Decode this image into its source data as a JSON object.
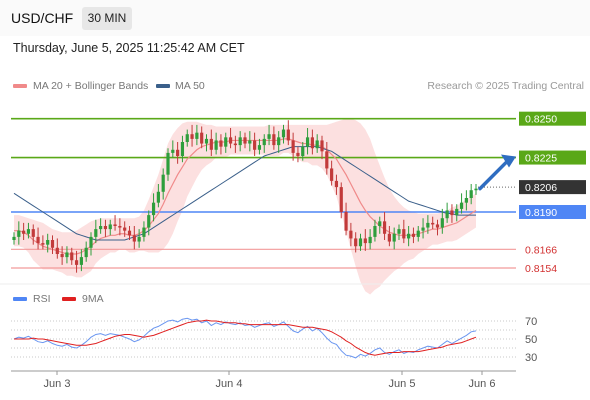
{
  "header": {
    "symbol": "USD/CHF",
    "timeframe": "30 MIN",
    "datetime": "Thursday, June 5, 2025 11:25:42 AM CET"
  },
  "legend": {
    "ma20_label": "MA 20 + Bollinger Bands",
    "ma50_label": "MA 50",
    "credit": "Research © 2025 Trading Central",
    "rsi_label": "RSI",
    "ma9_label": "9MA"
  },
  "colors": {
    "resistance": "#5aa818",
    "support": "#4f86f5",
    "minor": "#f29a9a",
    "bullish": "#2e9e3c",
    "bearish": "#c23a3a",
    "ma20": "#f08a8a",
    "ma50": "#3a5f8a",
    "arrow": "#2f6dc1",
    "current": "#333333"
  },
  "chart_data": [
    {
      "type": "candlestick",
      "title": "USD/CHF",
      "x_labels": [
        "Jun 3",
        "Jun 4",
        "Jun 5",
        "Jun 6"
      ],
      "ylim": [
        0.8145,
        0.8262
      ],
      "current_price": 0.8206,
      "levels": [
        {
          "value": 0.825,
          "label": "0.8250",
          "kind": "resistance"
        },
        {
          "value": 0.8225,
          "label": "0.8225",
          "kind": "resistance"
        },
        {
          "value": 0.8206,
          "label": "0.8206",
          "kind": "current"
        },
        {
          "value": 0.819,
          "label": "0.8190",
          "kind": "pivot"
        },
        {
          "value": 0.8166,
          "label": "0.8166",
          "kind": "support"
        },
        {
          "value": 0.8154,
          "label": "0.8154",
          "kind": "support"
        }
      ],
      "close": [
        0.8174,
        0.8178,
        0.8176,
        0.8179,
        0.8174,
        0.817,
        0.8169,
        0.8172,
        0.8167,
        0.8163,
        0.8161,
        0.8164,
        0.8159,
        0.8156,
        0.8161,
        0.8167,
        0.8174,
        0.8179,
        0.8181,
        0.8179,
        0.8182,
        0.8181,
        0.818,
        0.8178,
        0.8175,
        0.8171,
        0.8174,
        0.818,
        0.8188,
        0.8196,
        0.8203,
        0.8214,
        0.8228,
        0.823,
        0.8226,
        0.8235,
        0.824,
        0.8237,
        0.8241,
        0.8234,
        0.8237,
        0.823,
        0.8236,
        0.8232,
        0.8238,
        0.8234,
        0.8233,
        0.8238,
        0.8234,
        0.8236,
        0.823,
        0.8233,
        0.8237,
        0.824,
        0.8233,
        0.8238,
        0.8243,
        0.8236,
        0.8228,
        0.8226,
        0.8232,
        0.8238,
        0.8231,
        0.8236,
        0.8229,
        0.8218,
        0.821,
        0.8206,
        0.819,
        0.8178,
        0.8173,
        0.8168,
        0.8173,
        0.817,
        0.8174,
        0.8181,
        0.8184,
        0.8176,
        0.8171,
        0.8176,
        0.8179,
        0.8173,
        0.8176,
        0.8174,
        0.8178,
        0.818,
        0.8183,
        0.8182,
        0.818,
        0.8186,
        0.8191,
        0.8188,
        0.8192,
        0.8196,
        0.8199,
        0.8204,
        0.8205
      ],
      "ma20": [
        0.8178,
        0.8178,
        0.8177,
        0.8175,
        0.8172,
        0.817,
        0.8168,
        0.8167,
        0.8166,
        0.8165,
        0.8164,
        0.8163,
        0.8163,
        0.8163,
        0.8164,
        0.8166,
        0.8168,
        0.8171,
        0.8173,
        0.8174,
        0.8175,
        0.8175,
        0.8176,
        0.8176,
        0.8175,
        0.8175,
        0.8176,
        0.8178,
        0.8181,
        0.8185,
        0.8189,
        0.8195,
        0.8202,
        0.8208,
        0.8214,
        0.8219,
        0.8224,
        0.8227,
        0.823,
        0.8232,
        0.8233,
        0.8234,
        0.8235,
        0.8235,
        0.8235,
        0.8236,
        0.8236,
        0.8236,
        0.8236,
        0.8236,
        0.8236,
        0.8236,
        0.8236,
        0.8236,
        0.8236,
        0.8236,
        0.8237,
        0.8237,
        0.8236,
        0.8235,
        0.8234,
        0.8234,
        0.8233,
        0.8233,
        0.8232,
        0.823,
        0.8227,
        0.8224,
        0.8219,
        0.8214,
        0.8208,
        0.8202,
        0.8196,
        0.8191,
        0.8187,
        0.8184,
        0.8181,
        0.8179,
        0.8177,
        0.8176,
        0.8175,
        0.8175,
        0.8175,
        0.8175,
        0.8176,
        0.8177,
        0.8178,
        0.8179,
        0.8179,
        0.818,
        0.8181,
        0.8182,
        0.8183,
        0.8185,
        0.8187,
        0.8189,
        0.8191
      ],
      "bb_upper": [
        0.8188,
        0.8188,
        0.8187,
        0.8186,
        0.8185,
        0.8184,
        0.8183,
        0.8181,
        0.8179,
        0.8178,
        0.8177,
        0.8177,
        0.8177,
        0.8178,
        0.818,
        0.8182,
        0.8184,
        0.8185,
        0.8186,
        0.8186,
        0.8186,
        0.8186,
        0.8186,
        0.8186,
        0.8186,
        0.8186,
        0.8187,
        0.8191,
        0.8198,
        0.8206,
        0.8214,
        0.8224,
        0.8234,
        0.824,
        0.8244,
        0.8247,
        0.8248,
        0.8248,
        0.8248,
        0.8247,
        0.8246,
        0.8246,
        0.8245,
        0.8245,
        0.8245,
        0.8245,
        0.8245,
        0.8245,
        0.8245,
        0.8245,
        0.8245,
        0.8245,
        0.8245,
        0.8246,
        0.8246,
        0.8246,
        0.8246,
        0.8246,
        0.8246,
        0.8246,
        0.8246,
        0.8246,
        0.8246,
        0.8246,
        0.8246,
        0.8246,
        0.8247,
        0.8248,
        0.8249,
        0.825,
        0.825,
        0.8249,
        0.8247,
        0.8243,
        0.8237,
        0.8228,
        0.822,
        0.8212,
        0.8205,
        0.82,
        0.8196,
        0.8193,
        0.8191,
        0.819,
        0.8189,
        0.8189,
        0.8189,
        0.8189,
        0.8189,
        0.819,
        0.8191,
        0.8193,
        0.8194,
        0.8196,
        0.8198,
        0.82,
        0.8202
      ],
      "bb_lower": [
        0.8168,
        0.8168,
        0.8167,
        0.8164,
        0.8159,
        0.8156,
        0.8153,
        0.8153,
        0.8153,
        0.8152,
        0.8151,
        0.8149,
        0.8149,
        0.8148,
        0.8148,
        0.815,
        0.8152,
        0.8157,
        0.816,
        0.8162,
        0.8164,
        0.8164,
        0.8166,
        0.8166,
        0.8164,
        0.8164,
        0.8165,
        0.8165,
        0.8164,
        0.8164,
        0.8164,
        0.8166,
        0.817,
        0.8176,
        0.8184,
        0.8191,
        0.82,
        0.8206,
        0.8212,
        0.8217,
        0.822,
        0.8222,
        0.8225,
        0.8225,
        0.8225,
        0.8227,
        0.8227,
        0.8227,
        0.8227,
        0.8227,
        0.8227,
        0.8227,
        0.8227,
        0.8226,
        0.8226,
        0.8226,
        0.8228,
        0.8228,
        0.8226,
        0.8224,
        0.8222,
        0.8222,
        0.822,
        0.822,
        0.8218,
        0.8214,
        0.8207,
        0.82,
        0.8189,
        0.8178,
        0.8166,
        0.8155,
        0.8145,
        0.8139,
        0.8137,
        0.814,
        0.8142,
        0.8146,
        0.8149,
        0.8152,
        0.8154,
        0.8157,
        0.8159,
        0.816,
        0.8163,
        0.8165,
        0.8167,
        0.8169,
        0.8169,
        0.817,
        0.8171,
        0.8171,
        0.8172,
        0.8174,
        0.8176,
        0.8178,
        0.818
      ],
      "ma50": [
        0.8202,
        0.82,
        0.8198,
        0.8196,
        0.8194,
        0.8192,
        0.819,
        0.8188,
        0.8186,
        0.8184,
        0.8182,
        0.818,
        0.8178,
        0.8176,
        0.8175,
        0.8174,
        0.8173,
        0.8172,
        0.8172,
        0.8172,
        0.8172,
        0.8172,
        0.8172,
        0.8172,
        0.8173,
        0.8174,
        0.8175,
        0.8176,
        0.8178,
        0.818,
        0.8182,
        0.8184,
        0.8186,
        0.8188,
        0.819,
        0.8192,
        0.8194,
        0.8196,
        0.8198,
        0.82,
        0.8202,
        0.8204,
        0.8206,
        0.8208,
        0.821,
        0.8212,
        0.8214,
        0.8216,
        0.8218,
        0.822,
        0.8222,
        0.8224,
        0.8226,
        0.8227,
        0.8228,
        0.8229,
        0.823,
        0.8231,
        0.8232,
        0.8232,
        0.8232,
        0.8232,
        0.8232,
        0.8232,
        0.8231,
        0.823,
        0.8229,
        0.8227,
        0.8225,
        0.8223,
        0.8221,
        0.8219,
        0.8217,
        0.8215,
        0.8213,
        0.8211,
        0.8209,
        0.8207,
        0.8205,
        0.8203,
        0.8201,
        0.8199,
        0.8197,
        0.8196,
        0.8195,
        0.8194,
        0.8193,
        0.8192,
        0.8191,
        0.819,
        0.8189,
        0.8189,
        0.8188,
        0.8188,
        0.8188,
        0.8188,
        0.8188
      ]
    },
    {
      "type": "line",
      "title": "RSI",
      "ylim": [
        20,
        80
      ],
      "y_ticks": [
        30,
        50,
        70
      ],
      "series": [
        {
          "name": "RSI",
          "values": [
            50,
            52,
            51,
            53,
            50,
            47,
            46,
            48,
            45,
            43,
            42,
            44,
            41,
            40,
            43,
            47,
            52,
            55,
            56,
            54,
            56,
            55,
            54,
            52,
            50,
            47,
            49,
            53,
            58,
            62,
            64,
            67,
            70,
            71,
            69,
            72,
            73,
            71,
            72,
            68,
            70,
            65,
            68,
            66,
            69,
            67,
            66,
            68,
            65,
            66,
            63,
            65,
            67,
            68,
            64,
            66,
            69,
            64,
            59,
            57,
            61,
            64,
            59,
            62,
            57,
            51,
            46,
            44,
            37,
            32,
            31,
            29,
            33,
            31,
            34,
            38,
            40,
            35,
            33,
            36,
            38,
            34,
            36,
            35,
            38,
            40,
            42,
            41,
            40,
            44,
            48,
            45,
            48,
            51,
            54,
            58,
            59
          ]
        },
        {
          "name": "9MA",
          "values": [
            50,
            50,
            50,
            50,
            51,
            50,
            50,
            49,
            48,
            47,
            46,
            45,
            44,
            43,
            43,
            43,
            44,
            45,
            47,
            49,
            51,
            53,
            54,
            55,
            55,
            54,
            53,
            52,
            53,
            54,
            56,
            58,
            60,
            62,
            64,
            66,
            68,
            69,
            70,
            70,
            71,
            70,
            70,
            69,
            68,
            68,
            68,
            67,
            67,
            66,
            66,
            66,
            66,
            66,
            66,
            66,
            66,
            66,
            65,
            64,
            63,
            63,
            63,
            62,
            61,
            60,
            58,
            55,
            52,
            48,
            45,
            41,
            38,
            35,
            33,
            32,
            33,
            34,
            35,
            35,
            35,
            36,
            36,
            36,
            36,
            37,
            38,
            39,
            40,
            41,
            43,
            44,
            45,
            46,
            48,
            50,
            52
          ]
        }
      ]
    }
  ]
}
